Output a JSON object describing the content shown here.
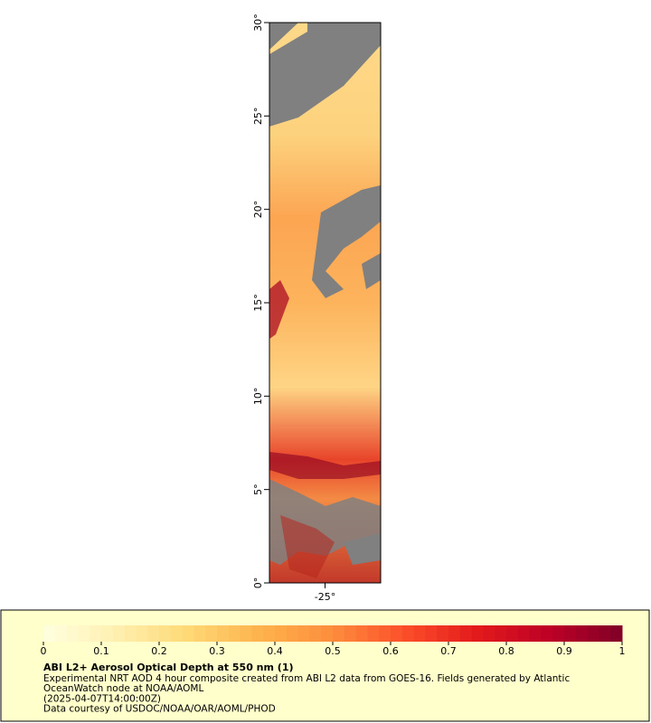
{
  "map": {
    "xlim": [
      -28,
      -22
    ],
    "ylim": [
      0,
      30
    ],
    "xticks": [
      {
        "value": -25,
        "label": "-25°"
      }
    ],
    "yticks": [
      {
        "value": 0,
        "label": "0°"
      },
      {
        "value": 5,
        "label": "5°"
      },
      {
        "value": 10,
        "label": "10°"
      },
      {
        "value": 15,
        "label": "15°"
      },
      {
        "value": 20,
        "label": "20°"
      },
      {
        "value": 25,
        "label": "25°"
      },
      {
        "value": 30,
        "label": "30°"
      }
    ]
  },
  "colorbar": {
    "lim": [
      0,
      1
    ],
    "ticks": [
      0,
      0.1,
      0.2,
      0.3,
      0.4,
      0.5,
      0.6,
      0.7,
      0.8,
      0.9,
      1
    ],
    "colors": [
      "#ffffe0",
      "#fff0b0",
      "#fed976",
      "#feb24c",
      "#fd8d3c",
      "#fc4e2a",
      "#e31a1c",
      "#bd0026",
      "#800026"
    ]
  },
  "legend": {
    "title": "ABI L2+ Aerosol Optical Depth at 550 nm (1)",
    "lines": [
      "Experimental NRT AOD 4 hour composite created from ABI L2 data from GOES-16. Fields generated by Atlantic",
      "OceanWatch node at NOAA/AOML",
      "(2025-04-07T14:00:00Z)",
      "Data courtesy of USDOC/NOAA/OAR/AOML/PHOD"
    ]
  }
}
